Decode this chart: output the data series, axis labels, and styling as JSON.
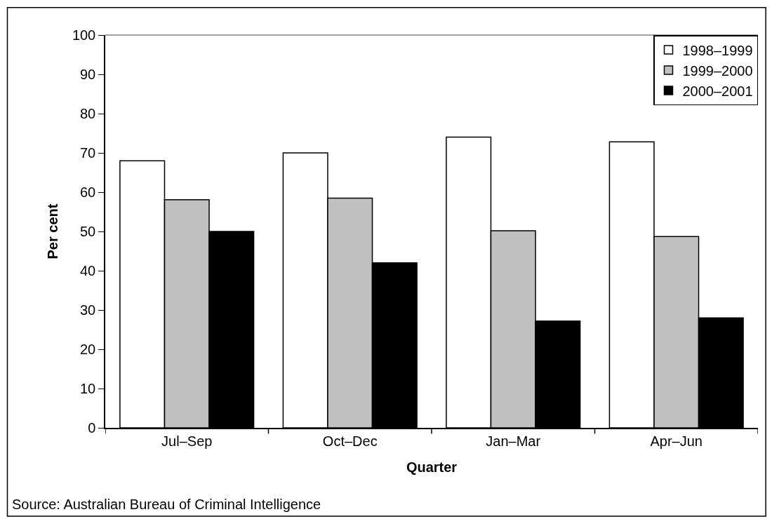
{
  "chart_data": {
    "type": "bar",
    "xlabel": "Quarter",
    "ylabel": "Per cent",
    "categories": [
      "Jul–Sep",
      "Oct–Dec",
      "Jan–Mar",
      "Apr–Jun"
    ],
    "series": [
      {
        "name": "1998–1999",
        "color": "#ffffff",
        "values": [
          68,
          70,
          74,
          72.8
        ]
      },
      {
        "name": "1999–2000",
        "color": "#c0c0c0",
        "values": [
          58.1,
          58.5,
          50.2,
          48.7
        ]
      },
      {
        "name": "2000–2001",
        "color": "#000000",
        "values": [
          50,
          42,
          27.2,
          28
        ]
      }
    ],
    "ylim": [
      0,
      100
    ],
    "yticks": [
      0,
      10,
      20,
      30,
      40,
      50,
      60,
      70,
      80,
      90,
      100
    ],
    "grid": false,
    "legend": "top right",
    "annotations": [
      "Source: Australian Bureau of Criminal Intelligence"
    ]
  }
}
